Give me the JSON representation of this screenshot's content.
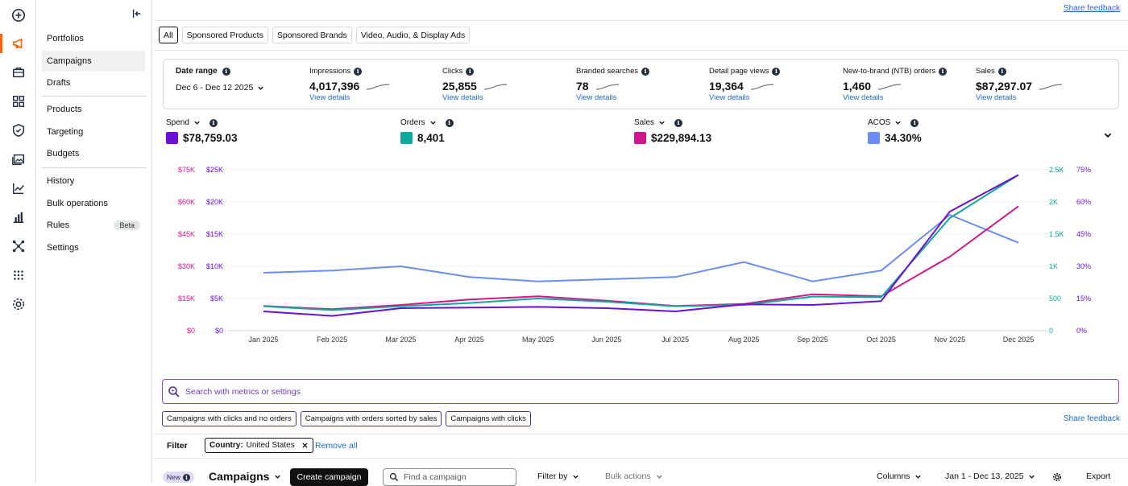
{
  "rail": {
    "icons": [
      "add-circle-icon",
      "megaphone-icon",
      "briefcase-icon",
      "grid-icon",
      "shield-icon",
      "image-gallery-icon",
      "line-chart-icon",
      "bar-chart-icon",
      "network-icon",
      "apps-dots-icon",
      "gear-icon"
    ],
    "active_index": 1
  },
  "sidebar": {
    "items": [
      {
        "label": "Portfolios"
      },
      {
        "label": "Campaigns",
        "active": true
      },
      {
        "label": "Drafts"
      },
      {
        "label": "Products"
      },
      {
        "label": "Targeting"
      },
      {
        "label": "Budgets"
      },
      {
        "label": "History"
      },
      {
        "label": "Bulk operations"
      },
      {
        "label": "Rules",
        "badge": "Beta"
      },
      {
        "label": "Settings"
      }
    ]
  },
  "header": {
    "share_feedback": "Share feedback"
  },
  "tabs": [
    "All",
    "Sponsored Products",
    "Sponsored Brands",
    "Video, Audio, & Display Ads"
  ],
  "summary": {
    "date_label": "Date range",
    "date_value": "Dec 6 - Dec 12 2025",
    "kpis": [
      {
        "label": "Impressions",
        "value": "4,017,396",
        "link": "View details"
      },
      {
        "label": "Clicks",
        "value": "25,855",
        "link": "View details"
      },
      {
        "label": "Branded searches",
        "value": "78",
        "link": "View details"
      },
      {
        "label": "Detail page views",
        "value": "19,364",
        "link": "View details"
      },
      {
        "label": "New-to-brand (NTB) orders",
        "value": "1,460",
        "link": "View details"
      },
      {
        "label": "Sales",
        "value": "$87,297.07",
        "link": "View details"
      }
    ]
  },
  "metrics": [
    {
      "label": "Spend",
      "value": "$78,759.03",
      "color": "#6b10d6"
    },
    {
      "label": "Orders",
      "value": "8,401",
      "color": "#0ea89c"
    },
    {
      "label": "Sales",
      "value": "$229,894.13",
      "color": "#d3158c"
    },
    {
      "label": "ACOS",
      "value": "34.30%",
      "color": "#6b8cf5"
    }
  ],
  "chart_data": {
    "type": "line",
    "x": [
      "Jan 2025",
      "Feb 2025",
      "Mar 2025",
      "Apr 2025",
      "May 2025",
      "Jun 2025",
      "Jul 2025",
      "Aug 2025",
      "Sep 2025",
      "Oct 2025",
      "Nov 2025",
      "Dec 2025"
    ],
    "axes": {
      "sales_ticks": [
        "$0",
        "$15K",
        "$30K",
        "$45K",
        "$60K",
        "$75K"
      ],
      "spend_ticks": [
        "$0",
        "$5K",
        "$10K",
        "$15K",
        "$20K",
        "$25K"
      ],
      "orders_ticks": [
        "0",
        "500",
        "1K",
        "1.5K",
        "2K",
        "2.5K"
      ],
      "acos_ticks": [
        "0%",
        "15%",
        "30%",
        "45%",
        "60%",
        "75%"
      ],
      "sales_max": 75000,
      "spend_max": 25000,
      "orders_max": 2500,
      "acos_max": 75
    },
    "series": [
      {
        "name": "Spend",
        "axis": "spend",
        "color": "#6b10d6",
        "values": [
          3000,
          2300,
          3500,
          3600,
          3700,
          3500,
          3000,
          4100,
          4000,
          4600,
          18500,
          24200
        ]
      },
      {
        "name": "Orders",
        "axis": "orders",
        "color": "#0ea89c",
        "values": [
          380,
          320,
          380,
          430,
          500,
          450,
          380,
          400,
          530,
          520,
          1750,
          2420
        ]
      },
      {
        "name": "Sales",
        "axis": "sales",
        "color": "#d3158c",
        "values": [
          11500,
          10000,
          12000,
          14500,
          16000,
          14000,
          11500,
          12500,
          17000,
          16000,
          34500,
          58000
        ]
      },
      {
        "name": "ACOS",
        "axis": "acos",
        "color": "#6b8cf5",
        "values": [
          27,
          28,
          30,
          25,
          23,
          24,
          25,
          32,
          23,
          28,
          54,
          41
        ]
      }
    ],
    "grid": true
  },
  "search": {
    "placeholder": "Search with metrics or settings"
  },
  "suggestions": [
    "Campaigns with clicks and no orders",
    "Campaigns with orders sorted by sales",
    "Campaigns with clicks"
  ],
  "share_feedback_2": "Share feedback",
  "filter": {
    "label": "Filter",
    "chip_key": "Country:",
    "chip_value": "United States",
    "remove_all": "Remove all"
  },
  "toolbar": {
    "new_badge": "New",
    "title": "Campaigns",
    "create": "Create campaign",
    "find_placeholder": "Find a campaign",
    "filter_by": "Filter by",
    "bulk_actions": "Bulk actions",
    "columns": "Columns",
    "date_range": "Jan 1 - Dec 13, 2025",
    "export": "Export"
  }
}
